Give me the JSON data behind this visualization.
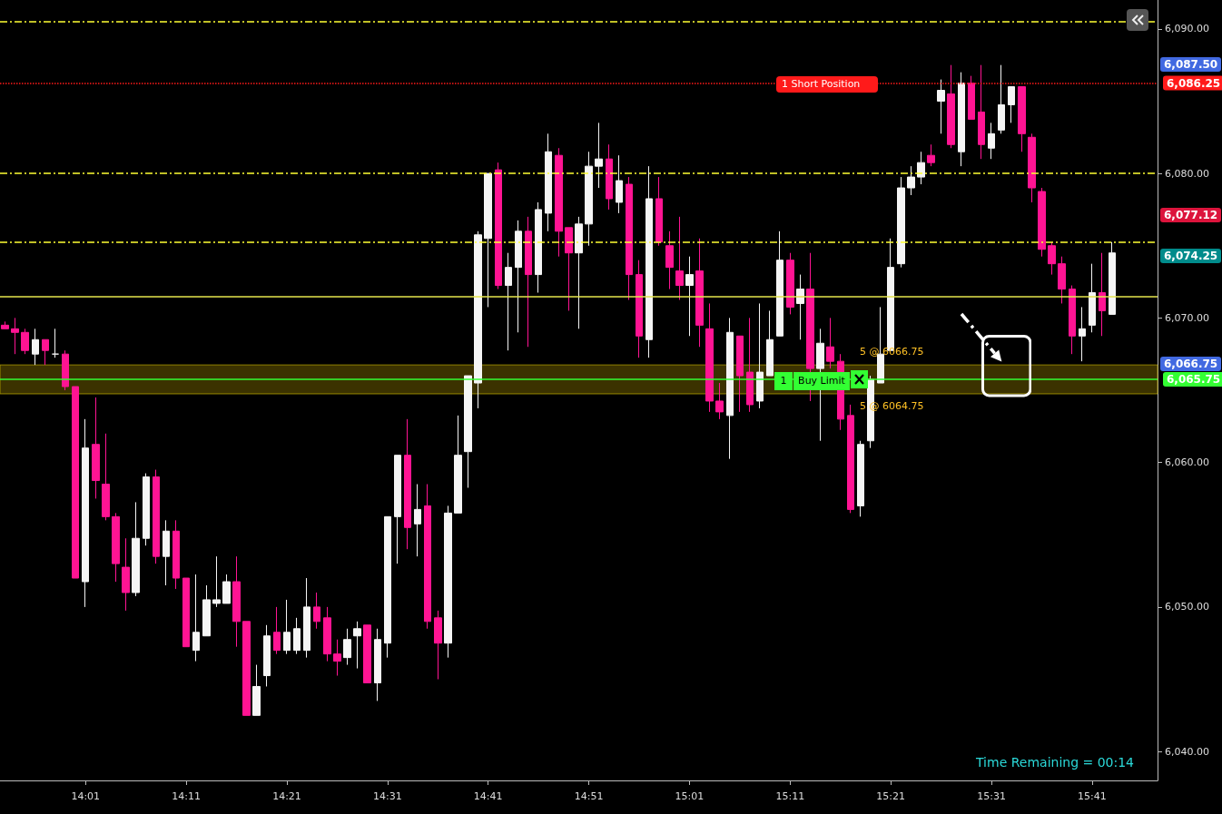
{
  "chart_data": {
    "type": "candlestick",
    "categories": [
      null,
      null,
      null,
      null,
      null,
      null,
      null,
      null,
      "14:01",
      null,
      null,
      null,
      null,
      null,
      null,
      null,
      null,
      null,
      "14:11",
      null,
      null,
      null,
      null,
      null,
      null,
      null,
      null,
      null,
      "14:21",
      null,
      null,
      null,
      null,
      null,
      null,
      null,
      null,
      null,
      "14:31",
      null,
      null,
      null,
      null,
      null,
      null,
      null,
      null,
      null,
      "14:41",
      null,
      null,
      null,
      null,
      null,
      null,
      null,
      null,
      null,
      "14:51",
      null,
      null,
      null,
      null,
      null,
      null,
      null,
      null,
      null,
      "15:01",
      null,
      null,
      null,
      null,
      null,
      null,
      null,
      null,
      null,
      "15:11",
      null,
      null,
      null,
      null,
      null,
      null,
      null,
      null,
      null,
      "15:21",
      null,
      null,
      null,
      null,
      null,
      null,
      null,
      null,
      null,
      "15:31",
      null,
      null,
      null,
      null,
      null,
      null,
      null,
      null,
      null,
      "15:41",
      null,
      null,
      null,
      null,
      null,
      null
    ],
    "ohlc": [
      [
        6069.5,
        6069.75,
        6069.25,
        6069.25
      ],
      [
        6069.25,
        6070,
        6067.5,
        6069
      ],
      [
        6069,
        6069.25,
        6067.5,
        6067.75
      ],
      [
        6067.5,
        6069.25,
        6066.75,
        6068.5
      ],
      [
        6068.5,
        6068.5,
        6066.75,
        6067.75
      ],
      [
        6067.5,
        6069.25,
        6067.25,
        6067.5
      ],
      [
        6067.5,
        6067.75,
        6065,
        6065.25
      ],
      [
        6065.25,
        6065.25,
        6052,
        6052
      ],
      [
        6051.75,
        6063,
        6050,
        6061
      ],
      [
        6061.25,
        6064.5,
        6057.5,
        6058.75
      ],
      [
        6058.5,
        6062,
        6056,
        6056.25
      ],
      [
        6056.25,
        6056.5,
        6051.75,
        6053
      ],
      [
        6052.75,
        6054.75,
        6049.75,
        6051
      ],
      [
        6051,
        6057.25,
        6050.75,
        6054.75
      ],
      [
        6054.75,
        6059.25,
        6054.25,
        6059
      ],
      [
        6059,
        6059.5,
        6053,
        6053.5
      ],
      [
        6053.5,
        6056,
        6051.5,
        6055.25
      ],
      [
        6055.25,
        6056,
        6051.25,
        6052
      ],
      [
        6052,
        6052,
        6047.25,
        6047.25
      ],
      [
        6047,
        6052.25,
        6046.25,
        6048.25
      ],
      [
        6048,
        6051.5,
        6048,
        6050.5
      ],
      [
        6050.25,
        6053.5,
        6050,
        6050.5
      ],
      [
        6050.25,
        6052.25,
        6050.25,
        6051.75
      ],
      [
        6051.75,
        6053.5,
        6047.25,
        6049
      ],
      [
        6049,
        6049,
        6042.5,
        6042.5
      ],
      [
        6042.5,
        6046,
        6042.5,
        6044.5
      ],
      [
        6045.25,
        6048.75,
        6044.5,
        6048
      ],
      [
        6048.25,
        6050,
        6046.75,
        6047
      ],
      [
        6047,
        6050.5,
        6046.75,
        6048.25
      ],
      [
        6047,
        6049.25,
        6046.75,
        6048.5
      ],
      [
        6047,
        6052,
        6046.5,
        6050
      ],
      [
        6050,
        6051,
        6048.5,
        6049
      ],
      [
        6049.25,
        6050,
        6046.25,
        6046.75
      ],
      [
        6046.75,
        6047.75,
        6045.25,
        6046.25
      ],
      [
        6046.5,
        6048.5,
        6046,
        6047.75
      ],
      [
        6048,
        6049,
        6045.75,
        6048.5
      ],
      [
        6048.75,
        6048.75,
        6044.75,
        6044.75
      ],
      [
        6044.75,
        6048.5,
        6043.5,
        6047.75
      ],
      [
        6047.5,
        6056.25,
        6046.5,
        6056.25
      ],
      [
        6056.25,
        6060.5,
        6053,
        6060.5
      ],
      [
        6060.5,
        6063,
        6054,
        6055.5
      ],
      [
        6055.75,
        6058.5,
        6053.5,
        6056.75
      ],
      [
        6057,
        6058.5,
        6048.5,
        6049
      ],
      [
        6049.25,
        6049.75,
        6045,
        6047.5
      ],
      [
        6047.5,
        6057,
        6046.5,
        6056.5
      ],
      [
        6056.5,
        6063.25,
        6056.5,
        6060.5
      ],
      [
        6060.75,
        6066,
        6058.25,
        6066
      ],
      [
        6065.5,
        6076,
        6063.75,
        6075.75
      ],
      [
        6075.5,
        6080,
        6070.75,
        6080
      ],
      [
        6080.25,
        6080.75,
        6072,
        6072.25
      ],
      [
        6072.25,
        6074.5,
        6067.75,
        6073.5
      ],
      [
        6073.5,
        6076.75,
        6069,
        6076
      ],
      [
        6076,
        6077,
        6068,
        6073
      ],
      [
        6073,
        6078,
        6071.75,
        6077.5
      ],
      [
        6077.25,
        6082.75,
        6076,
        6081.5
      ],
      [
        6081.25,
        6081.75,
        6074.25,
        6076
      ],
      [
        6076.25,
        6076.25,
        6070.5,
        6074.5
      ],
      [
        6074.5,
        6077,
        6069.25,
        6076.5
      ],
      [
        6076.5,
        6081.5,
        6075,
        6080.5
      ],
      [
        6080.5,
        6083.5,
        6079,
        6081
      ],
      [
        6081,
        6082,
        6077.5,
        6078.25
      ],
      [
        6078,
        6081.25,
        6077.25,
        6079.5
      ],
      [
        6079.25,
        6079.75,
        6071.25,
        6073
      ],
      [
        6073,
        6074,
        6067.25,
        6068.75
      ],
      [
        6068.5,
        6080.5,
        6067.25,
        6078.25
      ],
      [
        6078.25,
        6079.75,
        6075,
        6075.25
      ],
      [
        6075,
        6076,
        6072,
        6073.5
      ],
      [
        6073.25,
        6077,
        6071.25,
        6072.25
      ],
      [
        6072.25,
        6074.25,
        6068.75,
        6073
      ],
      [
        6073.25,
        6075.5,
        6068,
        6069.5
      ],
      [
        6069.25,
        6071,
        6063.5,
        6064.25
      ],
      [
        6064.25,
        6065.5,
        6063,
        6063.5
      ],
      [
        6063.25,
        6070,
        6060.25,
        6069
      ],
      [
        6068.75,
        6068.75,
        6063.5,
        6066
      ],
      [
        6066.25,
        6070,
        6063.5,
        6064
      ],
      [
        6064.25,
        6071,
        6063.75,
        6066.25
      ],
      [
        6066,
        6070.5,
        6066,
        6068.5
      ],
      [
        6068.75,
        6076,
        6068.75,
        6074
      ],
      [
        6074,
        6074.5,
        6070.25,
        6070.75
      ],
      [
        6071,
        6073,
        6068.5,
        6072
      ],
      [
        6072,
        6074.5,
        6064.25,
        6066.5
      ],
      [
        6066.5,
        6069.25,
        6061.5,
        6068.25
      ],
      [
        6068,
        6070,
        6066.5,
        6067
      ],
      [
        6067,
        6067.5,
        6062.25,
        6063
      ],
      [
        6063.25,
        6064,
        6056.5,
        6056.75
      ],
      [
        6057,
        6061.5,
        6056.25,
        6061.25
      ],
      [
        6061.5,
        6066,
        6061,
        6065.75
      ],
      [
        6065.5,
        6070.75,
        6065.5,
        6067.5
      ],
      [
        6067.75,
        6075.5,
        6067.75,
        6073.5
      ],
      [
        6073.75,
        6079.75,
        6073.5,
        6079
      ],
      [
        6079,
        6080.5,
        6078.5,
        6079.75
      ],
      [
        6079.75,
        6081.5,
        6079.25,
        6080.75
      ],
      [
        6081.25,
        6082,
        6080.5,
        6080.75
      ],
      [
        6085,
        6086.5,
        6082.75,
        6085.75
      ],
      [
        6085.5,
        6087.5,
        6081.75,
        6082
      ],
      [
        6081.5,
        6087,
        6080.5,
        6086.25
      ],
      [
        6086.25,
        6086.75,
        6083.75,
        6083.75
      ],
      [
        6084.25,
        6087.5,
        6081,
        6082
      ],
      [
        6081.75,
        6083.5,
        6081,
        6082.75
      ],
      [
        6083,
        6087.5,
        6082.75,
        6084.75
      ],
      [
        6084.75,
        6086,
        6083.5,
        6086
      ],
      [
        6086,
        6086,
        6081.5,
        6082.75
      ],
      [
        6082.5,
        6082.75,
        6078,
        6079
      ],
      [
        6078.75,
        6079,
        6074.25,
        6074.75
      ],
      [
        6075,
        6075.25,
        6073,
        6073.75
      ],
      [
        6073.75,
        6074.25,
        6071,
        6072
      ],
      [
        6072,
        6072.25,
        6067.5,
        6068.75
      ],
      [
        6068.75,
        6070.75,
        6067,
        6069.25
      ],
      [
        6069.5,
        6073.75,
        6069,
        6071.75
      ],
      [
        6071.75,
        6074.5,
        6068.75,
        6070.5
      ],
      [
        6070.25,
        6075.25,
        6070.25,
        6074.5
      ],
      null,
      null,
      null,
      null
    ],
    "colors": [
      "#ff1493",
      "#ff1493",
      "#ff1493",
      "#f5f5f5",
      "#ff1493",
      "#f5f5f5",
      "#ff1493",
      "#ff1493",
      "#f5f5f5",
      "#ff1493",
      "#ff1493",
      "#ff1493",
      "#ff1493",
      "#f5f5f5",
      "#f5f5f5",
      "#ff1493",
      "#f5f5f5",
      "#ff1493",
      "#ff1493",
      "#f5f5f5",
      "#f5f5f5",
      "#f5f5f5",
      "#f5f5f5",
      "#ff1493",
      "#ff1493",
      "#f5f5f5",
      "#f5f5f5",
      "#ff1493",
      "#f5f5f5",
      "#f5f5f5",
      "#f5f5f5",
      "#ff1493",
      "#ff1493",
      "#ff1493",
      "#f5f5f5",
      "#f5f5f5",
      "#ff1493",
      "#f5f5f5",
      "#f5f5f5",
      "#f5f5f5",
      "#ff1493",
      "#f5f5f5",
      "#ff1493",
      "#ff1493",
      "#f5f5f5",
      "#f5f5f5",
      "#f5f5f5",
      "#f5f5f5",
      "#f5f5f5",
      "#ff1493",
      "#f5f5f5",
      "#f5f5f5",
      "#ff1493",
      "#f5f5f5",
      "#f5f5f5",
      "#ff1493",
      "#ff1493",
      "#f5f5f5",
      "#f5f5f5",
      "#f5f5f5",
      "#ff1493",
      "#f5f5f5",
      "#ff1493",
      "#ff1493",
      "#f5f5f5",
      "#ff1493",
      "#ff1493",
      "#ff1493",
      "#f5f5f5",
      "#ff1493",
      "#ff1493",
      "#ff1493",
      "#f5f5f5",
      "#ff1493",
      "#ff1493",
      "#f5f5f5",
      "#f5f5f5",
      "#f5f5f5",
      "#ff1493",
      "#f5f5f5",
      "#ff1493",
      "#f5f5f5",
      "#ff1493",
      "#ff1493",
      "#ff1493",
      "#f5f5f5",
      "#f5f5f5",
      "#f5f5f5",
      "#f5f5f5",
      "#f5f5f5",
      "#f5f5f5",
      "#f5f5f5",
      "#ff1493",
      "#f5f5f5",
      "#ff1493",
      "#f5f5f5",
      "#ff1493",
      "#ff1493",
      "#f5f5f5",
      "#f5f5f5",
      "#f5f5f5",
      "#ff1493",
      "#ff1493",
      "#ff1493",
      "#ff1493",
      "#ff1493",
      "#ff1493",
      "#f5f5f5",
      "#f5f5f5",
      "#ff1493",
      "#f5f5f5",
      null,
      null,
      null,
      null
    ],
    "ylim": [
      6038,
      6092
    ],
    "yticks": [
      {
        "value": 6040,
        "label": "6,040.00"
      },
      {
        "value": 6050,
        "label": "6,050.00"
      },
      {
        "value": 6060,
        "label": "6,060.00"
      },
      {
        "value": 6070,
        "label": "6,070.00"
      },
      {
        "value": 6080,
        "label": "6,080.00"
      },
      {
        "value": 6090,
        "label": "6,090.00"
      }
    ],
    "ref_lines": [
      {
        "axis": "y",
        "value": 6090.5,
        "color": "#ffff33",
        "line_style": "dashed"
      },
      {
        "axis": "y",
        "value": 6080,
        "color": "#ffff33",
        "line_style": "dashed"
      },
      {
        "axis": "y",
        "value": 6075.25,
        "color": "#ffff33",
        "line_style": "dashed"
      },
      {
        "axis": "y",
        "value": 6071.5,
        "color": "#e6e64d",
        "line_style": "solid"
      },
      {
        "axis": "y",
        "value": 6065.75,
        "color": "#33ff33",
        "line_style": "solid",
        "label": "6,065.75"
      },
      {
        "axis": "y",
        "value": 6086.25,
        "color": "#ff1a1a",
        "line_style": "dotted",
        "label": "6,086.25"
      }
    ],
    "bands": [
      {
        "axis": "y",
        "from": 6064.75,
        "to": 6066.75,
        "color": "#4a3f00"
      }
    ],
    "annotations": [
      {
        "text": "1 Short Position",
        "y": 6086.25
      },
      {
        "text": "1",
        "y": 6065.75
      },
      {
        "text": "Buy Limit",
        "y": 6065.75
      },
      {
        "text": "5 @ 6066.75",
        "y": 6066.75
      },
      {
        "text": "5 @ 6064.75",
        "y": 6064.75
      },
      "Time Remaining = 00:14",
      "6,087.50",
      "6,077.12",
      "6,074.25",
      "6,066.75"
    ]
  }
}
